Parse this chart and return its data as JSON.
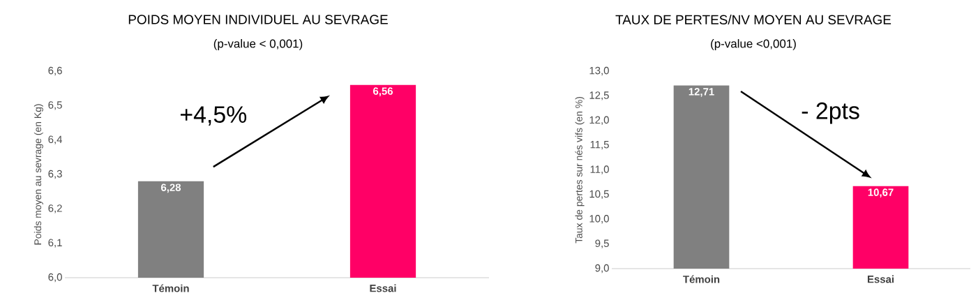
{
  "chart_data": [
    {
      "type": "bar",
      "title": "POIDS MOYEN INDIVIDUEL AU SEVRAGE",
      "subtitle": "(p-value < 0,001)",
      "ylabel": "Poids moyen au sevrage (en Kg)",
      "categories": [
        "Témoin",
        "Essai"
      ],
      "values": [
        6.28,
        6.56
      ],
      "value_labels": [
        "6,28",
        "6,56"
      ],
      "colors": [
        "#808080",
        "#ff0066"
      ],
      "ylim": [
        6.0,
        6.6
      ],
      "yticks": [
        {
          "value": 6.0,
          "label": "6,0"
        },
        {
          "value": 6.1,
          "label": "6,1"
        },
        {
          "value": 6.2,
          "label": "6,2"
        },
        {
          "value": 6.3,
          "label": "6,3"
        },
        {
          "value": 6.4,
          "label": "6,4"
        },
        {
          "value": 6.5,
          "label": "6,5"
        },
        {
          "value": 6.6,
          "label": "6,6"
        }
      ],
      "annotations": [
        "+4,5%"
      ]
    },
    {
      "type": "bar",
      "title": "TAUX DE PERTES/NV MOYEN AU SEVRAGE",
      "subtitle": "(p-value <0,001)",
      "ylabel": "Taux de pertes sur nés vifs (en %)",
      "categories": [
        "Témoin",
        "Essai"
      ],
      "values": [
        12.71,
        10.67
      ],
      "value_labels": [
        "12,71",
        "10,67"
      ],
      "colors": [
        "#808080",
        "#ff0066"
      ],
      "ylim": [
        9.0,
        13.0
      ],
      "yticks": [
        {
          "value": 9.0,
          "label": "9,0"
        },
        {
          "value": 9.5,
          "label": "9,5"
        },
        {
          "value": 10.0,
          "label": "10,0"
        },
        {
          "value": 10.5,
          "label": "10,5"
        },
        {
          "value": 11.0,
          "label": "11,0"
        },
        {
          "value": 11.5,
          "label": "11,5"
        },
        {
          "value": 12.0,
          "label": "12,0"
        },
        {
          "value": 12.5,
          "label": "12,5"
        },
        {
          "value": 13.0,
          "label": "13,0"
        }
      ],
      "annotations": [
        "- 2pts"
      ]
    }
  ]
}
